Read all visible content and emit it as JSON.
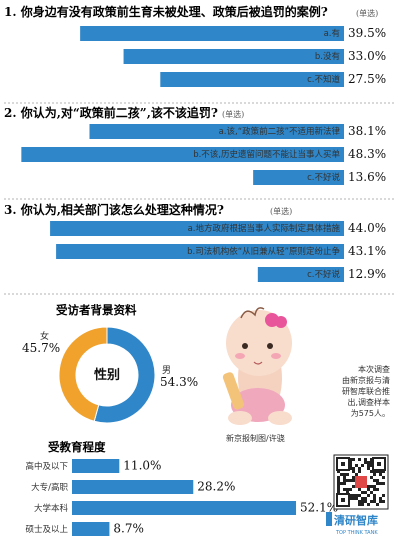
{
  "chart_data": [
    {
      "type": "bar",
      "title": "1. 你身边有没有政策前生育未被处理、政策后被追罚的案例?",
      "question_type": "(单选)",
      "categories": [
        "a.有",
        "b.没有",
        "c.不知道"
      ],
      "values": [
        39.5,
        33.0,
        27.5
      ],
      "value_labels": [
        "39.5%",
        "33.0%",
        "27.5%"
      ],
      "xlim": [
        0,
        50
      ]
    },
    {
      "type": "bar",
      "title": "2. 你认为,对“政策前二孩”,该不该追罚?",
      "question_type": "(单选)",
      "categories": [
        "a.该,“政策前二孩”不适用新法律",
        "b.不该,历史遗留问题不能让当事人买单",
        "c.不好说"
      ],
      "values": [
        38.1,
        48.3,
        13.6
      ],
      "value_labels": [
        "38.1%",
        "48.3%",
        "13.6%"
      ],
      "xlim": [
        0,
        50
      ]
    },
    {
      "type": "bar",
      "title": "3. 你认为,相关部门该怎么处理这种情况?",
      "question_type": "(单选)",
      "categories": [
        "a.地方政府根据当事人实际制定具体措施",
        "b.司法机构依“从旧兼从轻”原则定纷止争",
        "c.不好说"
      ],
      "values": [
        44.0,
        43.1,
        12.9
      ],
      "value_labels": [
        "44.0%",
        "43.1%",
        "12.9%"
      ],
      "xlim": [
        0,
        50
      ]
    },
    {
      "type": "pie",
      "title": "受访者背景资料",
      "center_label": "性别",
      "categories": [
        "女",
        "男"
      ],
      "values": [
        45.7,
        54.3
      ],
      "value_labels": [
        "45.7%",
        "54.3%"
      ],
      "colors": [
        "#f0a22d",
        "#2f86c8"
      ]
    },
    {
      "type": "bar",
      "title": "受教育程度",
      "categories": [
        "高中及以下",
        "大专/高职",
        "大学本科",
        "硕士及以上"
      ],
      "values": [
        11.0,
        28.2,
        52.1,
        8.7
      ],
      "value_labels": [
        "11.0%",
        "28.2%",
        "52.1%",
        "8.7%"
      ],
      "xlim": [
        0,
        60
      ]
    }
  ],
  "note": {
    "lines": [
      "本次调查",
      "由新京报与清",
      "研智库联合推",
      "出,调查样本",
      "为575人。"
    ]
  },
  "credit": "新京报制图/许骁",
  "logo": {
    "text": "清研智库",
    "subtext": "TOP THINK TANK"
  },
  "colors": {
    "bar": "#2f86c8",
    "female": "#f0a22d",
    "male": "#2f86c8",
    "divider": "#9a9a9a"
  }
}
